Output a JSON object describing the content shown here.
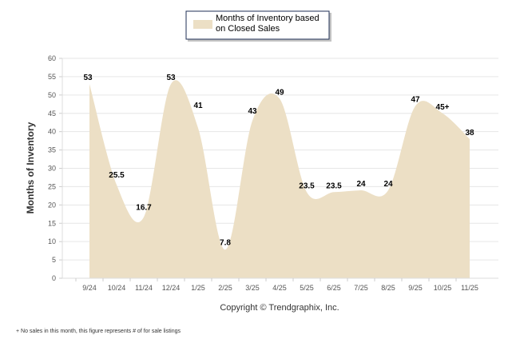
{
  "chart_data": {
    "type": "area",
    "title": "",
    "legend": {
      "label_line1": "Months of Inventory based",
      "label_line2": "on Closed Sales",
      "placement": "top-center"
    },
    "xlabel": "",
    "ylabel": "Months of Inventory",
    "ylim": [
      0,
      60
    ],
    "yticks": [
      0,
      5,
      10,
      15,
      20,
      25,
      30,
      35,
      40,
      45,
      50,
      55,
      60
    ],
    "grid": true,
    "categories": [
      "9/24",
      "10/24",
      "11/24",
      "12/24",
      "1/25",
      "2/25",
      "3/25",
      "4/25",
      "5/25",
      "6/25",
      "7/25",
      "8/25",
      "9/25",
      "10/25",
      "11/25"
    ],
    "values": [
      53,
      25.5,
      16.7,
      53,
      41,
      7.8,
      43,
      49,
      23.5,
      23.5,
      24,
      24,
      47,
      45,
      38
    ],
    "data_labels": [
      "53",
      "25.5",
      "16.7",
      "53",
      "41",
      "7.8",
      "43",
      "49",
      "23.5",
      "23.5",
      "24",
      "24",
      "47",
      "45+",
      "38"
    ],
    "fill_color": "#ecdfc5",
    "copyright": "Copyright © Trendgraphix, Inc.",
    "footnote": "+  No sales in this month, this figure represents # of for sale listings"
  }
}
